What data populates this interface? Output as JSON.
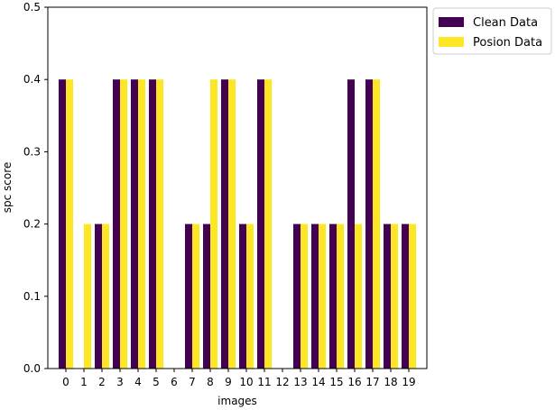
{
  "chart_data": {
    "type": "bar",
    "xlabel": "images",
    "ylabel": "spc score",
    "ylim": [
      0,
      0.5
    ],
    "yticks": [
      0.0,
      0.1,
      0.2,
      0.3,
      0.4,
      0.5
    ],
    "categories": [
      "0",
      "1",
      "2",
      "3",
      "4",
      "5",
      "6",
      "7",
      "8",
      "9",
      "10",
      "11",
      "12",
      "13",
      "14",
      "15",
      "16",
      "17",
      "18",
      "19"
    ],
    "series": [
      {
        "name": "Clean Data",
        "color": "#440154",
        "values": [
          0.4,
          0.0,
          0.2,
          0.4,
          0.4,
          0.4,
          0.0,
          0.2,
          0.2,
          0.4,
          0.2,
          0.4,
          0.0,
          0.2,
          0.2,
          0.2,
          0.4,
          0.4,
          0.2,
          0.2
        ]
      },
      {
        "name": "Posion Data",
        "color": "#fde725",
        "values": [
          0.4,
          0.2,
          0.2,
          0.4,
          0.4,
          0.4,
          0.0,
          0.2,
          0.4,
          0.4,
          0.2,
          0.4,
          0.0,
          0.2,
          0.2,
          0.2,
          0.2,
          0.4,
          0.2,
          0.2
        ]
      }
    ],
    "legend": "upper-right-outside",
    "grid": false
  }
}
